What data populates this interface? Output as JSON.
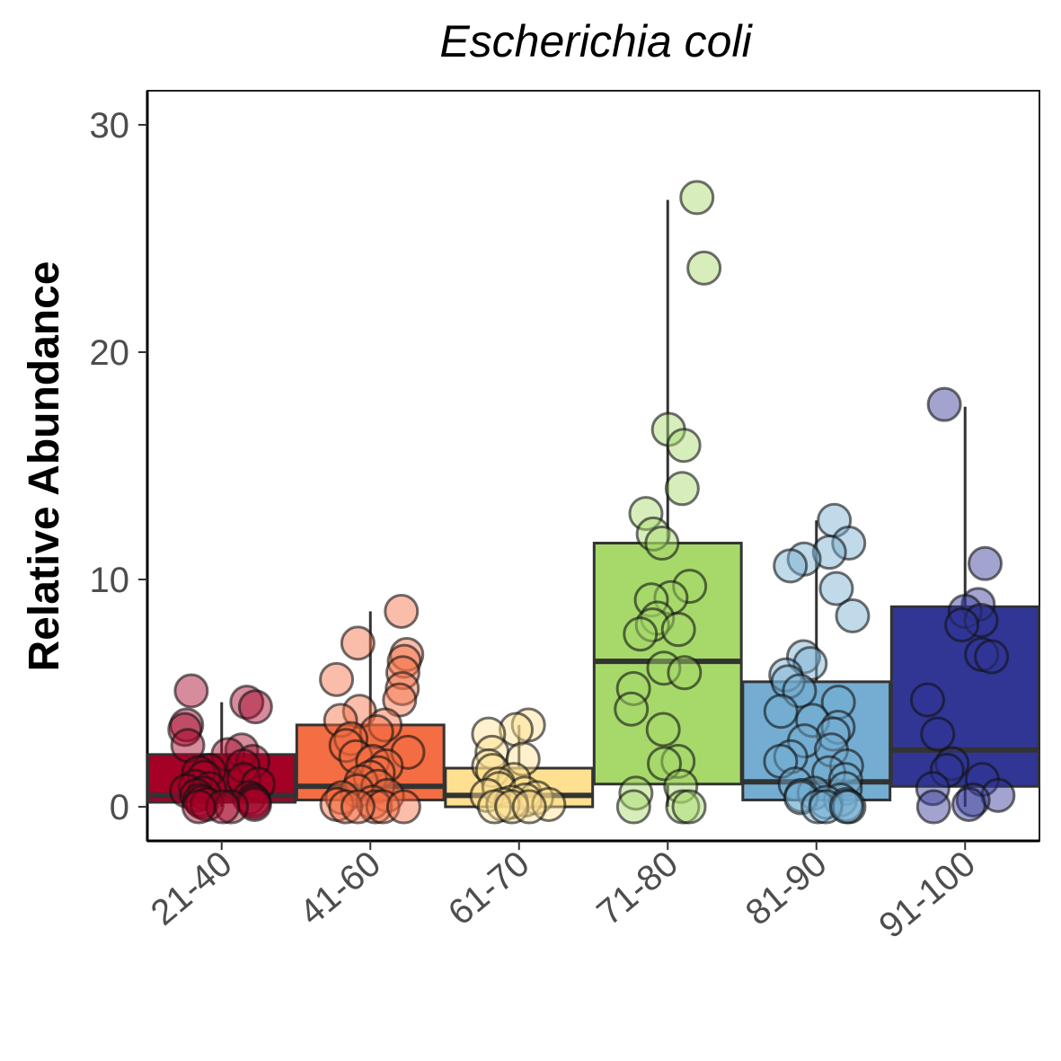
{
  "chart_data": {
    "type": "boxplot",
    "title": "Escherichia coli",
    "xlabel": "",
    "ylabel": "Relative Abundance",
    "ylim": [
      -1.5,
      31.5
    ],
    "yticks": [
      0,
      10,
      20,
      30
    ],
    "categories": [
      "21-40",
      "41-60",
      "61-70",
      "71-80",
      "81-90",
      "91-100"
    ],
    "grid": false,
    "legend": "none",
    "boxes": [
      {
        "category": "21-40",
        "color": "#a50026",
        "q1": 0.2,
        "median": 0.5,
        "q3": 2.3,
        "whisker_low": 0.0,
        "whisker_high": 4.6,
        "points": [
          5.1,
          4.6,
          4.4,
          3.6,
          3.4,
          2.7,
          2.5,
          2.3,
          2.0,
          1.8,
          1.6,
          1.5,
          1.3,
          1.2,
          1.0,
          0.9,
          0.8,
          0.7,
          0.6,
          0.5,
          0.4,
          0.3,
          0.3,
          0.2,
          0.2,
          0.1,
          0.1,
          0.0,
          0.0,
          0.0
        ]
      },
      {
        "category": "41-60",
        "color": "#f46d43",
        "q1": 0.3,
        "median": 0.9,
        "q3": 3.6,
        "whisker_low": 0.0,
        "whisker_high": 8.6,
        "points": [
          8.6,
          7.2,
          6.7,
          6.4,
          5.9,
          5.6,
          5.2,
          4.7,
          4.2,
          3.8,
          3.6,
          3.3,
          3.0,
          2.7,
          2.4,
          2.2,
          2.0,
          1.8,
          1.5,
          1.3,
          1.1,
          0.9,
          0.7,
          0.5,
          0.4,
          0.2,
          0.1,
          0.0,
          0.0,
          0.0,
          0.0,
          0.0
        ]
      },
      {
        "category": "61-70",
        "color": "#fee090",
        "q1": 0.0,
        "median": 0.5,
        "q3": 1.7,
        "whisker_low": 0.0,
        "whisker_high": 3.6,
        "points": [
          3.6,
          3.4,
          3.2,
          2.4,
          2.1,
          1.8,
          1.6,
          1.2,
          1.0,
          0.8,
          0.6,
          0.5,
          0.4,
          0.3,
          0.2,
          0.1,
          0.1,
          0.0,
          0.0,
          0.0
        ]
      },
      {
        "category": "71-80",
        "color": "#a6d96a",
        "q1": 1.0,
        "median": 6.4,
        "q3": 11.6,
        "whisker_low": 0.0,
        "whisker_high": 26.7,
        "points": [
          26.8,
          23.7,
          16.6,
          15.9,
          14.0,
          12.9,
          12.0,
          11.6,
          9.7,
          9.2,
          9.1,
          8.3,
          8.0,
          7.8,
          7.6,
          6.1,
          5.9,
          5.2,
          4.3,
          3.4,
          2.0,
          1.9,
          0.9,
          0.6,
          0.0,
          0.0,
          0.0
        ]
      },
      {
        "category": "81-90",
        "color": "#74add1",
        "q1": 0.3,
        "median": 1.1,
        "q3": 5.5,
        "whisker_low": 0.0,
        "whisker_high": 12.6,
        "points": [
          12.6,
          11.6,
          11.2,
          10.9,
          10.6,
          9.6,
          8.4,
          6.6,
          6.3,
          5.8,
          5.5,
          5.1,
          4.6,
          4.2,
          3.8,
          3.5,
          3.2,
          2.9,
          2.5,
          2.2,
          2.0,
          1.8,
          1.5,
          1.2,
          1.0,
          0.8,
          0.6,
          0.5,
          0.4,
          0.3,
          0.2,
          0.1,
          0.0,
          0.0,
          0.0,
          0.0
        ]
      },
      {
        "category": "91-100",
        "color": "#313695",
        "q1": 0.9,
        "median": 2.5,
        "q3": 8.8,
        "whisker_low": 0.0,
        "whisker_high": 17.6,
        "points": [
          17.7,
          10.7,
          8.9,
          8.6,
          8.2,
          8.0,
          6.7,
          6.6,
          4.7,
          3.2,
          1.9,
          1.6,
          1.2,
          0.8,
          0.5,
          0.3,
          0.1,
          0.0
        ]
      }
    ]
  }
}
